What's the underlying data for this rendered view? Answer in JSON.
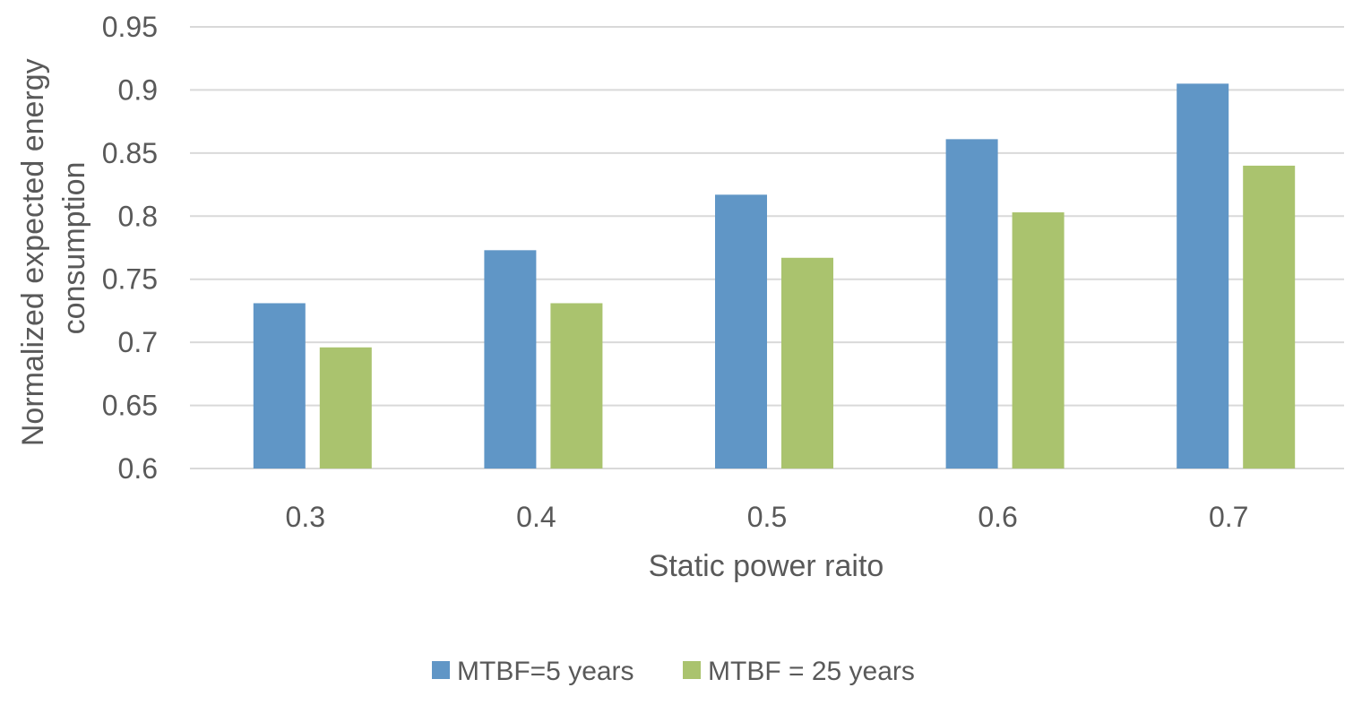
{
  "chart_data": {
    "type": "bar",
    "title": "",
    "xlabel": "Static power raito",
    "ylabel_lines": [
      "Normalized expected energy",
      "consumption"
    ],
    "categories": [
      "0.3",
      "0.4",
      "0.5",
      "0.6",
      "0.7"
    ],
    "series": [
      {
        "name": "MTBF=5 years",
        "color": "#6096c6",
        "values": [
          0.731,
          0.773,
          0.817,
          0.861,
          0.905
        ]
      },
      {
        "name": "MTBF = 25 years",
        "color": "#aac36e",
        "values": [
          0.696,
          0.731,
          0.767,
          0.803,
          0.84
        ]
      }
    ],
    "ylim": [
      0.6,
      0.95
    ],
    "yticks": [
      "0.6",
      "0.65",
      "0.7",
      "0.75",
      "0.8",
      "0.85",
      "0.9",
      "0.95"
    ],
    "grid": true,
    "gridline_color": "#d9d9d9",
    "legend_position": "bottom"
  }
}
